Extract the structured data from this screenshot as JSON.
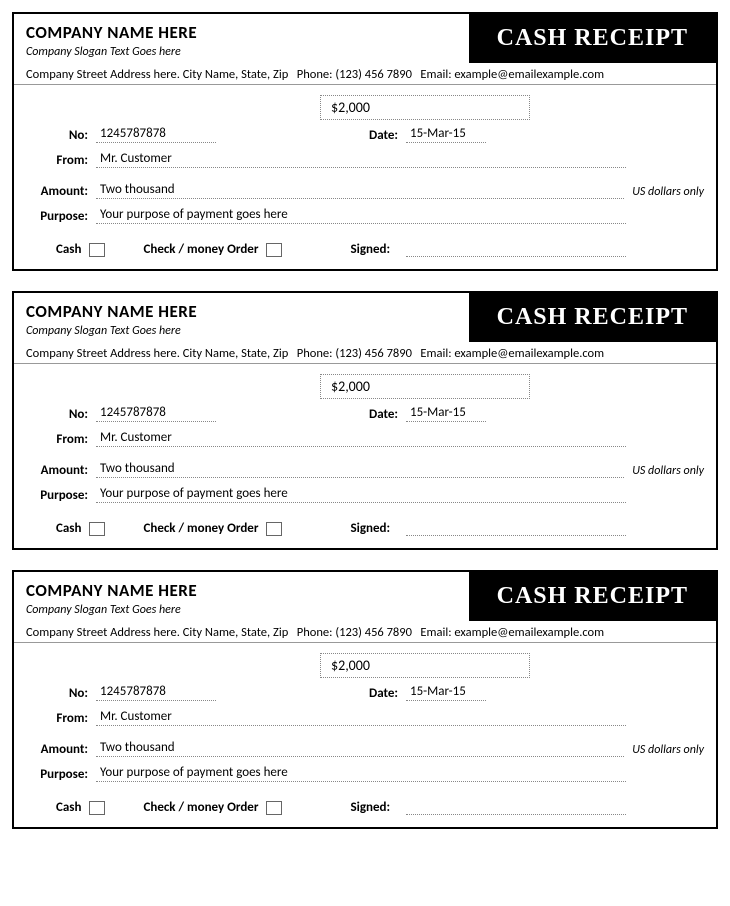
{
  "receipt": {
    "company_name": "COMPANY NAME HERE",
    "slogan": "Company Slogan Text Goes here",
    "title": "CASH RECEIPT",
    "address": "Company Street Address here. City Name, State, Zip",
    "phone_label": "Phone:",
    "phone": "(123) 456 7890",
    "email_label": "Email:",
    "email": "example@emailexample.com",
    "amount_display": "$2,000",
    "no_label": "No:",
    "no_value": "1245787878",
    "date_label": "Date:",
    "date_value": "15-Mar-15",
    "from_label": "From:",
    "from_value": "Mr. Customer",
    "amount_label": "Amount:",
    "amount_words": "Two thousand",
    "amount_suffix": "US dollars only",
    "purpose_label": "Purpose:",
    "purpose_value": "Your purpose of payment goes here",
    "cash_label": "Cash",
    "check_label": "Check / money Order",
    "signed_label": "Signed:"
  },
  "style": {
    "border_color": "#000000",
    "header_bg": "#000000",
    "header_fg": "#ffffff",
    "dotted_border": "#888888",
    "font_family": "Calibri, Arial, sans-serif",
    "title_font": "Georgia, serif",
    "company_fontsize": 17,
    "title_fontsize": 24,
    "body_fontsize": 13,
    "copies": 3
  }
}
